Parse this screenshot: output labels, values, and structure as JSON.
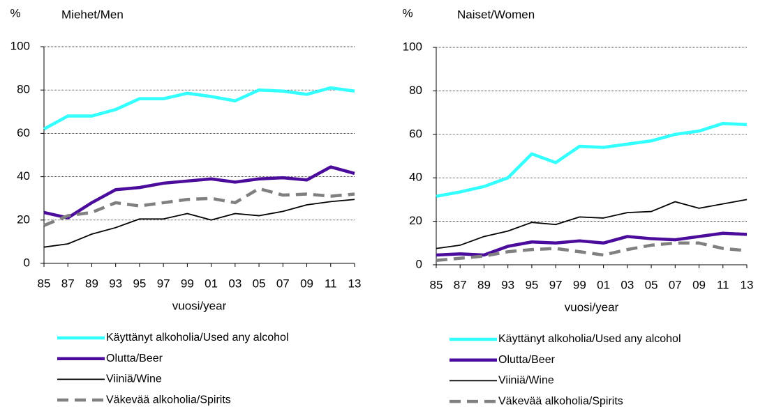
{
  "chart_data": [
    {
      "type": "line",
      "title": "Miehet/Men",
      "ylabel": "%",
      "xlabel": "vuosi/year",
      "categories": [
        "85",
        "87",
        "89",
        "93",
        "95",
        "97",
        "99",
        "01",
        "03",
        "05",
        "07",
        "09",
        "11",
        "13"
      ],
      "ylim": [
        0,
        100
      ],
      "yticks": [
        0,
        20,
        40,
        60,
        80,
        100
      ],
      "grid": true,
      "legend": "bottom",
      "series": [
        {
          "name": "Käyttänyt alkoholia/Used any alcohol",
          "color": "#33ffff",
          "linestyle": "solid",
          "values": [
            62,
            68,
            68,
            71,
            76,
            76,
            78.5,
            77,
            75,
            80,
            79.5,
            78,
            81,
            79.5
          ]
        },
        {
          "name": "Olutta/Beer",
          "color": "#4b0c9c",
          "linestyle": "solid",
          "values": [
            23.5,
            21,
            28,
            34,
            35,
            37,
            38,
            39,
            37.5,
            39,
            39.5,
            38.5,
            44.5,
            41.5
          ]
        },
        {
          "name": "Viiniä/Wine",
          "color": "#000000",
          "linestyle": "solid",
          "values": [
            7.5,
            9,
            13.5,
            16.5,
            20.5,
            20.5,
            23,
            20,
            23,
            22,
            24,
            27,
            28.5,
            29.5
          ]
        },
        {
          "name": "Väkevää alkoholia/Spirits",
          "color": "#808080",
          "linestyle": "dashed",
          "values": [
            17.5,
            22,
            23.5,
            28,
            26.5,
            28,
            29.5,
            30,
            28,
            34.5,
            31.5,
            32,
            31,
            32
          ]
        }
      ]
    },
    {
      "type": "line",
      "title": "Naiset/Women",
      "ylabel": "%",
      "xlabel": "vuosi/year",
      "categories": [
        "85",
        "87",
        "89",
        "93",
        "95",
        "97",
        "99",
        "01",
        "03",
        "05",
        "07",
        "09",
        "11",
        "13"
      ],
      "ylim": [
        0,
        100
      ],
      "yticks": [
        0,
        20,
        40,
        60,
        80,
        100
      ],
      "grid": true,
      "legend": "bottom",
      "series": [
        {
          "name": "Käyttänyt alkoholia/Used any alcohol",
          "color": "#33ffff",
          "linestyle": "solid",
          "values": [
            31.5,
            33.5,
            36,
            40,
            51,
            47,
            54.5,
            54,
            55.5,
            57,
            60,
            61.5,
            65,
            64.5
          ]
        },
        {
          "name": "Olutta/Beer",
          "color": "#4b0c9c",
          "linestyle": "solid",
          "values": [
            4.5,
            5,
            4.5,
            8.5,
            10.5,
            10,
            11,
            10,
            13,
            12,
            11.5,
            13,
            14.5,
            14
          ]
        },
        {
          "name": "Viiniä/Wine",
          "color": "#000000",
          "linestyle": "solid",
          "values": [
            7.5,
            9,
            13,
            15.5,
            19.5,
            18.5,
            22,
            21.5,
            24,
            24.5,
            29,
            26,
            28,
            30
          ]
        },
        {
          "name": "Väkevää alkoholia/Spirits",
          "color": "#808080",
          "linestyle": "dashed",
          "values": [
            2,
            3,
            4,
            6,
            7,
            7.5,
            6,
            4.5,
            7,
            9,
            10,
            10,
            7.5,
            6.5
          ]
        }
      ]
    }
  ]
}
